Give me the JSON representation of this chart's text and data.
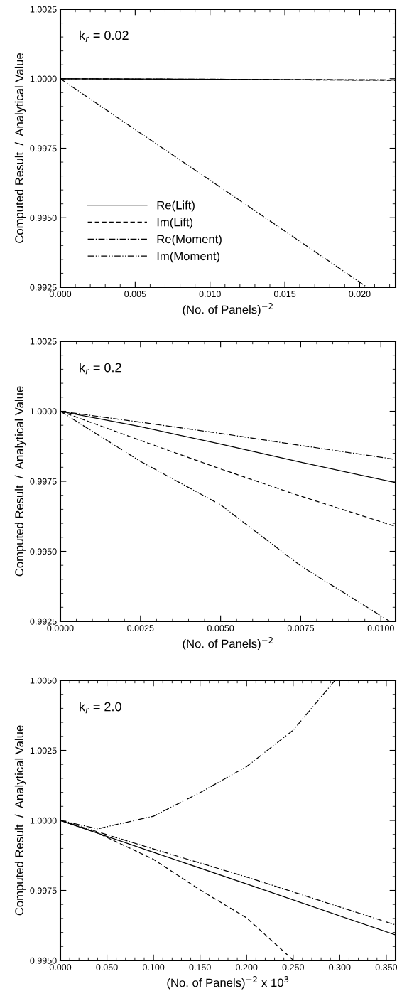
{
  "chart_data": [
    {
      "type": "line",
      "annotations": [
        {
          "text": "k$_{r}$ = 0.02"
        }
      ],
      "xlabel": "(No. of Panels)$^{−2}$",
      "ylabel": "Computed Result  /  Analytical Value",
      "xlim": [
        0,
        0.0224
      ],
      "ylim": [
        0.9925,
        1.0025
      ],
      "xticks": [
        {
          "value": 0,
          "label": "0.000"
        },
        0.005,
        {
          "value": 0.01,
          "label": "0.010"
        },
        0.015,
        {
          "value": 0.02,
          "label": "0.020"
        }
      ],
      "yticks": [
        0.9925,
        {
          "value": 0.995,
          "label": "0.9950"
        },
        0.9975,
        {
          "value": 1.0,
          "label": "1.0000"
        },
        1.0025
      ],
      "legend": "bottom left",
      "grid": false,
      "marker": "none",
      "series": [
        {
          "name": "Re(Lift)",
          "color": "#000000",
          "line_style": "solid",
          "x": [
            0,
            0.0224
          ],
          "values": [
            1.0,
            0.99995
          ]
        },
        {
          "name": "Im(Lift)",
          "color": "#000000",
          "line_style": "dashed",
          "x": [
            0,
            0.0224
          ],
          "values": [
            1.0,
            0.99994
          ]
        },
        {
          "name": "Re(Moment)",
          "color": "#000000",
          "line_style": "dashdot",
          "x": [
            0,
            0.0224
          ],
          "values": [
            1.0,
            0.99996
          ]
        },
        {
          "name": "Im(Moment)",
          "color": "#000000",
          "line_style": "dashdotdot",
          "x": [
            0,
            0.005,
            0.01,
            0.015,
            0.0205
          ],
          "values": [
            1.0,
            0.99817,
            0.99635,
            0.99452,
            0.9925
          ]
        }
      ]
    },
    {
      "type": "line",
      "annotations": [
        {
          "text": "k$_{r}$ = 0.2"
        }
      ],
      "xlabel": "(No. of Panels)$^{−2}$",
      "ylabel": "Computed Result  /  Analytical Value",
      "xlim": [
        0,
        0.01046
      ],
      "ylim": [
        0.9925,
        1.0025
      ],
      "xticks": [
        {
          "value": 0,
          "label": "0.0000"
        },
        0.0025,
        {
          "value": 0.005,
          "label": "0.0050"
        },
        0.0075,
        {
          "value": 0.01,
          "label": "0.0100"
        }
      ],
      "yticks": [
        0.9925,
        {
          "value": 0.995,
          "label": "0.9950"
        },
        0.9975,
        {
          "value": 1.0,
          "label": "1.0000"
        },
        1.0025
      ],
      "grid": false,
      "marker": "none",
      "series": [
        {
          "color": "#000000",
          "line_style": "solid",
          "x": [
            0,
            0.0025,
            0.005,
            0.0075,
            0.01046
          ],
          "values": [
            1.0,
            0.99945,
            0.99883,
            0.99818,
            0.99745
          ]
        },
        {
          "color": "#000000",
          "line_style": "dashed",
          "x": [
            0,
            0.0025,
            0.005,
            0.0075,
            0.01046
          ],
          "values": [
            1.0,
            0.99896,
            0.99794,
            0.99697,
            0.99589
          ]
        },
        {
          "color": "#000000",
          "line_style": "dashdot",
          "x": [
            0,
            0.0025,
            0.005,
            0.0075,
            0.01046
          ],
          "values": [
            1.0,
            0.99961,
            0.99921,
            0.99878,
            0.99828
          ]
        },
        {
          "color": "#000000",
          "line_style": "dashdotdot",
          "x": [
            0,
            0.0025,
            0.005,
            0.0075,
            0.01028
          ],
          "values": [
            1.0,
            0.99821,
            0.99666,
            0.99448,
            0.9925
          ]
        }
      ]
    },
    {
      "type": "line",
      "annotations": [
        {
          "text": "k$_{r}$ = 2.0"
        }
      ],
      "xlabel": "(No. of Panels)$^{−2}$ x 10$^{3}$",
      "ylabel": "Computed Result  /  Analytical Value",
      "xlim": [
        0,
        0.36
      ],
      "ylim": [
        0.995,
        1.005
      ],
      "xticks": [
        {
          "value": 0,
          "label": "0.000"
        },
        {
          "value": 0.05,
          "label": "0.050"
        },
        {
          "value": 0.1,
          "label": "0.100"
        },
        {
          "value": 0.15,
          "label": "0.150"
        },
        {
          "value": 0.2,
          "label": "0.200"
        },
        {
          "value": 0.25,
          "label": "0.250"
        },
        {
          "value": 0.3,
          "label": "0.300"
        },
        {
          "value": 0.35,
          "label": "0.350"
        }
      ],
      "yticks": [
        {
          "value": 0.995,
          "label": "0.9950"
        },
        0.9975,
        {
          "value": 1.0,
          "label": "1.0000"
        },
        1.0025,
        {
          "value": 1.005,
          "label": "1.0050"
        }
      ],
      "grid": false,
      "marker": "none",
      "series": [
        {
          "color": "#000000",
          "line_style": "solid",
          "x": [
            0,
            0.1,
            0.2,
            0.36
          ],
          "values": [
            1.0,
            0.99886,
            0.99773,
            0.99591
          ]
        },
        {
          "color": "#000000",
          "line_style": "dashed",
          "x": [
            0,
            0.04,
            0.1,
            0.15,
            0.2,
            0.2505
          ],
          "values": [
            1.0,
            0.99955,
            0.99861,
            0.99752,
            0.99652,
            0.995
          ]
        },
        {
          "color": "#000000",
          "line_style": "dashdot",
          "x": [
            0,
            0.1,
            0.2,
            0.36
          ],
          "values": [
            1.0,
            0.99898,
            0.99798,
            0.99627
          ]
        },
        {
          "color": "#000000",
          "line_style": "dashdotdot",
          "x": [
            0,
            0.04,
            0.1,
            0.15,
            0.2,
            0.25,
            0.295
          ],
          "values": [
            1.0,
            0.9997,
            1.00015,
            1.00099,
            1.00192,
            1.00322,
            1.005
          ]
        }
      ]
    }
  ]
}
